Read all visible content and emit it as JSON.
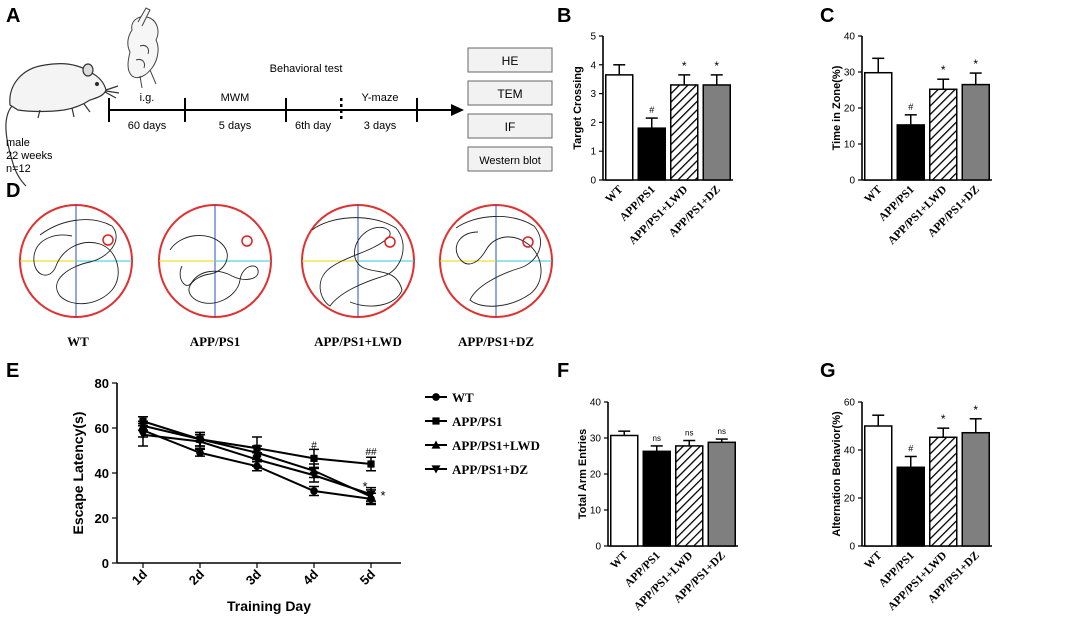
{
  "panels": {
    "A": "A",
    "B": "B",
    "C": "C",
    "D": "D",
    "E": "E",
    "F": "F",
    "G": "G"
  },
  "design": {
    "mouse_caption": [
      "male",
      "22 weeks",
      "n=12"
    ],
    "behavioral_test": "Behavioral test",
    "segments": [
      {
        "top": "i.g.",
        "bottom": "60 days"
      },
      {
        "top": "MWM",
        "bottom": "5 days"
      },
      {
        "top": "",
        "bottom": "6th day"
      },
      {
        "top": "Y-maze",
        "bottom": "3 days"
      }
    ],
    "assays": [
      "HE",
      "TEM",
      "IF",
      "Western blot"
    ]
  },
  "swim_paths": {
    "labels": [
      "WT",
      "APP/PS1",
      "APP/PS1+LWD",
      "APP/PS1+DZ"
    ]
  },
  "colors": {
    "black": "#000000",
    "grey": "#7f7f7f",
    "white": "#ffffff",
    "target": "#e02020"
  },
  "chart_data": [
    {
      "id": "B",
      "type": "bar",
      "ylabel": "Target Crossing",
      "ylim": [
        0,
        5
      ],
      "yticks": [
        0,
        1,
        2,
        3,
        4,
        5
      ],
      "categories": [
        "WT",
        "APP/PS1",
        "APP/PS1+LWD",
        "APP/PS1+DZ"
      ],
      "values": [
        3.65,
        1.8,
        3.3,
        3.3
      ],
      "errors": [
        0.35,
        0.35,
        0.35,
        0.35
      ],
      "marks": [
        "",
        "#",
        "*",
        "*"
      ]
    },
    {
      "id": "C",
      "type": "bar",
      "ylabel": "Time in Zone(%)",
      "ylim": [
        0,
        40
      ],
      "yticks": [
        0,
        10,
        20,
        30,
        40
      ],
      "categories": [
        "WT",
        "APP/PS1",
        "APP/PS1+LWD",
        "APP/PS1+DZ"
      ],
      "values": [
        29.8,
        15.3,
        25.2,
        26.5
      ],
      "errors": [
        4,
        2.8,
        2.8,
        3.2
      ],
      "marks": [
        "",
        "#",
        "*",
        "*"
      ]
    },
    {
      "id": "E",
      "type": "line",
      "xlabel": "Training Day",
      "ylabel": "Escape Latency(s)",
      "ylim": [
        0,
        80
      ],
      "yticks": [
        0,
        20,
        40,
        60,
        80
      ],
      "categories": [
        "1d",
        "2d",
        "3d",
        "4d",
        "5d"
      ],
      "series": [
        {
          "name": "WT",
          "marker": "circle",
          "values": [
            59,
            49,
            43,
            32,
            28.5
          ],
          "errors": [
            3,
            1.5,
            2,
            2,
            2.5
          ]
        },
        {
          "name": "APP/PS1",
          "marker": "square",
          "values": [
            63,
            55,
            51,
            46.5,
            44
          ],
          "errors": [
            2,
            3,
            5,
            4,
            3
          ]
        },
        {
          "name": "APP/PS1+LWD",
          "marker": "triangle-up",
          "values": [
            61,
            55,
            49,
            41,
            29.5
          ],
          "errors": [
            2,
            3,
            3,
            3,
            3
          ]
        },
        {
          "name": "APP/PS1+DZ",
          "marker": "triangle-down",
          "values": [
            57,
            54,
            46,
            39,
            30.5
          ],
          "errors": [
            5,
            3,
            3,
            3,
            3
          ]
        }
      ],
      "annotations": [
        {
          "x": "4d",
          "y": 51,
          "text": "#"
        },
        {
          "x": "5d",
          "y": 48,
          "text": "##"
        },
        {
          "x": "5d",
          "y": 32,
          "text": "*",
          "offset": "left"
        },
        {
          "x": "5d",
          "y": 28,
          "text": "*",
          "offset": "right"
        }
      ]
    },
    {
      "id": "F",
      "type": "bar",
      "ylabel": "Total Arm Entries",
      "ylim": [
        0,
        40
      ],
      "yticks": [
        0,
        10,
        20,
        30,
        40
      ],
      "categories": [
        "WT",
        "APP/PS1",
        "APP/PS1+LWD",
        "APP/PS1+DZ"
      ],
      "values": [
        30.7,
        26.3,
        27.8,
        28.8
      ],
      "errors": [
        1.2,
        1.5,
        1.5,
        0.9
      ],
      "marks": [
        "",
        "ns",
        "ns",
        "ns"
      ]
    },
    {
      "id": "G",
      "type": "bar",
      "ylabel": "Alternation Behavior(%)",
      "ylim": [
        0,
        60
      ],
      "yticks": [
        0,
        20,
        40,
        60
      ],
      "categories": [
        "WT",
        "APP/PS1",
        "APP/PS1+LWD",
        "APP/PS1+DZ"
      ],
      "values": [
        50,
        32.8,
        45.3,
        47.2
      ],
      "errors": [
        4.5,
        4.5,
        3.8,
        5.8
      ],
      "marks": [
        "",
        "#",
        "*",
        "*"
      ]
    }
  ]
}
